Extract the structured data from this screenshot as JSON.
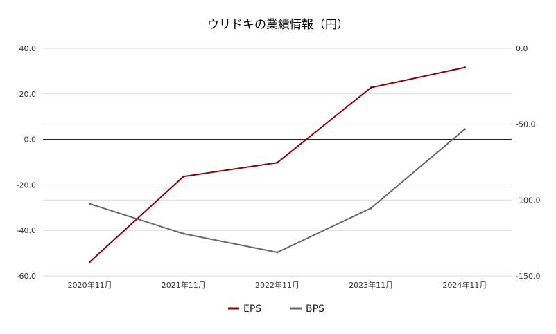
{
  "chart_data": {
    "type": "line",
    "title": "ウリドキの業績情報（円）",
    "categories": [
      "2020年11月",
      "2021年11月",
      "2022年11月",
      "2023年11月",
      "2024年11月"
    ],
    "series": [
      {
        "name": "EPS",
        "axis": "left",
        "color": "#8B0000",
        "values": [
          -53.8,
          -16.3,
          -10.2,
          22.8,
          31.6
        ]
      },
      {
        "name": "BPS",
        "axis": "right",
        "color": "#666666",
        "values": [
          -102.5,
          -122.2,
          -134.5,
          -105.3,
          -53.3
        ]
      }
    ],
    "y_left": {
      "ylim": [
        -60,
        40
      ],
      "ticks": [
        40,
        20,
        0,
        -20,
        -40,
        -60
      ],
      "tick_labels": [
        "40.0",
        "20.0",
        "0.0",
        "-20.0",
        "-40.0",
        "-60.0"
      ]
    },
    "y_right": {
      "ylim": [
        -150,
        0
      ],
      "ticks": [
        0,
        -50,
        -100,
        -150
      ],
      "tick_labels": [
        "0.0",
        "-50.0",
        "-100.0",
        "-150.0"
      ]
    },
    "grid": true,
    "legend_position": "bottom",
    "xlabel": "",
    "ylabel": ""
  }
}
